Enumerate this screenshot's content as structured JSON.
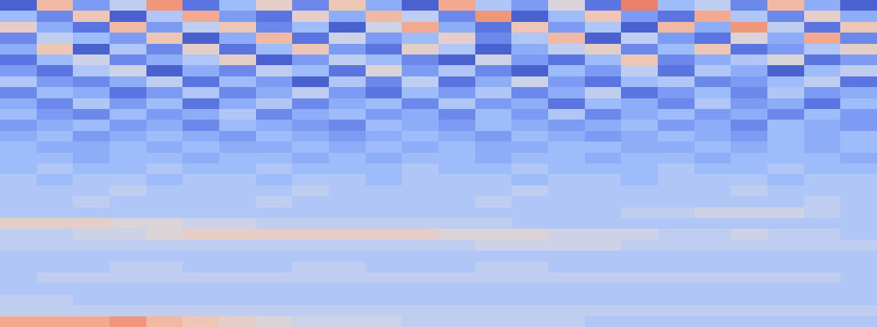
{
  "chart_data": {
    "type": "heatmap",
    "tick_labels": false,
    "zlim": [
      -1,
      1
    ],
    "values": [
      [
        -0.9,
        0.3,
        -0.6,
        -0.2,
        0.5,
        -0.8,
        -0.4,
        0.1,
        -0.7,
        0.2,
        -0.5,
        -0.9,
        0.4,
        -0.3,
        -0.6,
        0.0,
        -0.8,
        0.6,
        -0.4,
        -0.2,
        -0.7,
        0.3,
        -0.5,
        -0.9
      ],
      [
        -0.4,
        -0.7,
        0.2,
        -0.9,
        -0.3,
        0.4,
        -0.6,
        -0.8,
        0.1,
        -0.5,
        0.3,
        -0.2,
        -0.7,
        0.5,
        -0.9,
        -0.4,
        0.2,
        -0.6,
        -0.8,
        0.4,
        -0.3,
        -0.7,
        0.1,
        -0.5
      ],
      [
        0.1,
        -0.5,
        -0.8,
        0.3,
        -0.6,
        -0.2,
        0.2,
        -0.7,
        -0.4,
        -0.9,
        -0.1,
        0.4,
        -0.5,
        -0.8,
        0.2,
        -0.6,
        -0.3,
        -0.9,
        0.3,
        -0.5,
        0.5,
        -0.2,
        -0.8,
        0.2
      ],
      [
        -0.7,
        -0.2,
        -0.4,
        -0.6,
        0.2,
        -0.9,
        -0.5,
        0.3,
        -0.8,
        -0.1,
        -0.6,
        -0.4,
        0.1,
        -0.7,
        -0.3,
        0.3,
        -0.9,
        -0.2,
        -0.6,
        -0.8,
        0.0,
        -0.5,
        0.4,
        -0.7
      ],
      [
        -0.5,
        0.2,
        -0.9,
        -0.3,
        -0.7,
        0.1,
        -0.8,
        -0.4,
        0.2,
        -0.6,
        -0.8,
        0.1,
        -0.3,
        -0.9,
        -0.5,
        -0.2,
        0.1,
        -0.7,
        -0.4,
        0.2,
        -0.8,
        -0.6,
        -0.3,
        0.1
      ],
      [
        -0.8,
        -0.4,
        -0.1,
        -0.7,
        -0.5,
        -0.3,
        0.1,
        -0.9,
        -0.6,
        -0.2,
        -0.4,
        -0.7,
        -0.9,
        -0.1,
        -0.6,
        -0.8,
        -0.4,
        0.2,
        -0.7,
        -0.5,
        -0.3,
        0.0,
        -0.8,
        -0.6
      ],
      [
        -0.6,
        -0.8,
        -0.3,
        -0.1,
        -0.9,
        -0.5,
        -0.7,
        -0.2,
        -0.4,
        -0.8,
        0.0,
        -0.6,
        -0.3,
        -0.7,
        -0.9,
        -0.4,
        -0.6,
        -0.2,
        -0.8,
        -0.3,
        -0.5,
        -0.9,
        -0.4,
        -0.2
      ],
      [
        -0.3,
        -0.6,
        -0.7,
        -0.5,
        -0.2,
        -0.8,
        -0.4,
        -0.6,
        -0.9,
        -0.3,
        -0.7,
        -0.2,
        -0.8,
        -0.5,
        -0.1,
        -0.6,
        -0.8,
        -0.4,
        -0.3,
        -0.7,
        -0.6,
        -0.4,
        -0.2,
        -0.8
      ],
      [
        -0.7,
        -0.4,
        -0.5,
        -0.8,
        -0.6,
        -0.3,
        -0.7,
        -0.5,
        -0.2,
        -0.6,
        -0.8,
        -0.4,
        -0.6,
        -0.3,
        -0.7,
        -0.5,
        -0.2,
        -0.8,
        -0.6,
        -0.4,
        -0.7,
        -0.3,
        -0.6,
        -0.5
      ],
      [
        -0.5,
        -0.7,
        -0.3,
        -0.6,
        -0.4,
        -0.8,
        -0.5,
        -0.3,
        -0.7,
        -0.5,
        -0.4,
        -0.7,
        -0.3,
        -0.6,
        -0.5,
        -0.8,
        -0.4,
        -0.5,
        -0.7,
        -0.3,
        -0.6,
        -0.5,
        -0.8,
        -0.4
      ],
      [
        -0.4,
        -0.6,
        -0.7,
        -0.4,
        -0.6,
        -0.5,
        -0.3,
        -0.7,
        -0.5,
        -0.4,
        -0.6,
        -0.5,
        -0.7,
        -0.4,
        -0.6,
        -0.3,
        -0.7,
        -0.5,
        -0.4,
        -0.6,
        -0.5,
        -0.7,
        -0.4,
        -0.6
      ],
      [
        -0.6,
        -0.5,
        -0.4,
        -0.6,
        -0.5,
        -0.7,
        -0.4,
        -0.5,
        -0.6,
        -0.7,
        -0.4,
        -0.5,
        -0.6,
        -0.4,
        -0.5,
        -0.6,
        -0.5,
        -0.4,
        -0.6,
        -0.5,
        -0.7,
        -0.4,
        -0.5,
        -0.6
      ],
      [
        -0.5,
        -0.4,
        -0.6,
        -0.5,
        -0.4,
        -0.5,
        -0.6,
        -0.4,
        -0.5,
        -0.6,
        -0.5,
        -0.4,
        -0.5,
        -0.6,
        -0.4,
        -0.5,
        -0.6,
        -0.5,
        -0.4,
        -0.5,
        -0.6,
        -0.4,
        -0.5,
        -0.4
      ],
      [
        -0.4,
        -0.5,
        -0.5,
        -0.4,
        -0.5,
        -0.4,
        -0.5,
        -0.5,
        -0.4,
        -0.5,
        -0.4,
        -0.5,
        -0.4,
        -0.5,
        -0.5,
        -0.4,
        -0.4,
        -0.5,
        -0.5,
        -0.4,
        -0.5,
        -0.4,
        -0.5,
        -0.4
      ],
      [
        -0.4,
        -0.4,
        -0.5,
        -0.4,
        -0.4,
        -0.5,
        -0.4,
        -0.4,
        -0.5,
        -0.4,
        -0.5,
        -0.4,
        -0.4,
        -0.5,
        -0.4,
        -0.4,
        -0.5,
        -0.4,
        -0.4,
        -0.5,
        -0.4,
        -0.4,
        -0.4,
        -0.5
      ],
      [
        -0.4,
        -0.3,
        -0.4,
        -0.4,
        -0.3,
        -0.4,
        -0.4,
        -0.3,
        -0.4,
        -0.4,
        -0.4,
        -0.3,
        -0.4,
        -0.4,
        -0.3,
        -0.4,
        -0.4,
        -0.4,
        -0.3,
        -0.4,
        -0.4,
        -0.3,
        -0.4,
        -0.4
      ],
      [
        -0.3,
        -0.4,
        -0.3,
        -0.3,
        -0.4,
        -0.3,
        -0.3,
        -0.4,
        -0.3,
        -0.3,
        -0.4,
        -0.3,
        -0.3,
        -0.3,
        -0.4,
        -0.3,
        -0.3,
        -0.4,
        -0.3,
        -0.3,
        -0.3,
        -0.4,
        -0.3,
        -0.3
      ],
      [
        -0.3,
        -0.3,
        -0.3,
        -0.2,
        -0.3,
        -0.3,
        -0.3,
        -0.3,
        -0.2,
        -0.3,
        -0.3,
        -0.3,
        -0.3,
        -0.3,
        -0.2,
        -0.3,
        -0.3,
        -0.3,
        -0.3,
        -0.3,
        -0.2,
        -0.3,
        -0.3,
        -0.3
      ],
      [
        -0.3,
        -0.3,
        -0.2,
        -0.3,
        -0.3,
        -0.3,
        -0.3,
        -0.2,
        -0.3,
        -0.3,
        -0.3,
        -0.3,
        -0.3,
        -0.2,
        -0.3,
        -0.3,
        -0.3,
        -0.3,
        -0.3,
        -0.3,
        -0.3,
        -0.3,
        -0.2,
        -0.3
      ],
      [
        -0.3,
        -0.3,
        -0.3,
        -0.3,
        -0.3,
        -0.3,
        -0.3,
        -0.3,
        -0.3,
        -0.3,
        -0.3,
        -0.3,
        -0.3,
        -0.3,
        -0.3,
        -0.3,
        -0.3,
        -0.2,
        -0.2,
        -0.1,
        -0.1,
        -0.1,
        -0.2,
        -0.3
      ],
      [
        0.1,
        0.1,
        0.1,
        0.0,
        0.0,
        -0.1,
        -0.1,
        -0.2,
        -0.2,
        -0.2,
        -0.2,
        -0.2,
        -0.2,
        -0.2,
        -0.3,
        -0.3,
        -0.3,
        -0.3,
        -0.3,
        -0.3,
        -0.3,
        -0.3,
        -0.3,
        -0.3
      ],
      [
        -0.2,
        -0.2,
        -0.1,
        -0.1,
        0.0,
        0.1,
        0.1,
        0.1,
        0.1,
        0.1,
        0.1,
        0.1,
        0.0,
        0.0,
        0.0,
        -0.1,
        -0.1,
        -0.1,
        -0.2,
        -0.2,
        -0.1,
        -0.2,
        -0.2,
        -0.3
      ],
      [
        -0.2,
        -0.2,
        -0.2,
        -0.2,
        -0.2,
        -0.2,
        -0.2,
        -0.2,
        -0.2,
        -0.2,
        -0.2,
        -0.2,
        -0.2,
        -0.1,
        -0.1,
        -0.1,
        -0.1,
        -0.2,
        -0.2,
        -0.2,
        -0.2,
        -0.2,
        -0.2,
        -0.2
      ],
      [
        -0.3,
        -0.3,
        -0.3,
        -0.3,
        -0.3,
        -0.3,
        -0.3,
        -0.3,
        -0.3,
        -0.3,
        -0.3,
        -0.3,
        -0.3,
        -0.3,
        -0.3,
        -0.3,
        -0.3,
        -0.3,
        -0.3,
        -0.3,
        -0.3,
        -0.3,
        -0.3,
        -0.3
      ],
      [
        -0.3,
        -0.3,
        -0.3,
        -0.2,
        -0.2,
        -0.3,
        -0.3,
        -0.3,
        -0.2,
        -0.2,
        -0.3,
        -0.3,
        -0.3,
        -0.2,
        -0.2,
        -0.3,
        -0.3,
        -0.3,
        -0.3,
        -0.3,
        -0.3,
        -0.3,
        -0.3,
        -0.3
      ],
      [
        -0.3,
        -0.2,
        -0.2,
        -0.2,
        -0.2,
        -0.2,
        -0.2,
        -0.2,
        -0.2,
        -0.2,
        -0.2,
        -0.2,
        -0.2,
        -0.2,
        -0.2,
        -0.2,
        -0.2,
        -0.2,
        -0.2,
        -0.2,
        -0.2,
        -0.2,
        -0.2,
        -0.3
      ],
      [
        -0.3,
        -0.3,
        -0.3,
        -0.3,
        -0.3,
        -0.3,
        -0.3,
        -0.3,
        -0.3,
        -0.3,
        -0.3,
        -0.3,
        -0.3,
        -0.3,
        -0.3,
        -0.3,
        -0.3,
        -0.3,
        -0.3,
        -0.3,
        -0.3,
        -0.3,
        -0.3,
        -0.3
      ],
      [
        -0.2,
        -0.2,
        -0.3,
        -0.3,
        -0.3,
        -0.3,
        -0.3,
        -0.3,
        -0.3,
        -0.3,
        -0.3,
        -0.3,
        -0.3,
        -0.3,
        -0.3,
        -0.3,
        -0.3,
        -0.3,
        -0.3,
        -0.3,
        -0.3,
        -0.3,
        -0.3,
        -0.3
      ],
      [
        -0.2,
        -0.2,
        -0.2,
        -0.2,
        -0.2,
        -0.2,
        -0.2,
        -0.2,
        -0.2,
        -0.2,
        -0.2,
        -0.2,
        -0.2,
        -0.2,
        -0.2,
        -0.2,
        -0.2,
        -0.2,
        -0.2,
        -0.2,
        -0.2,
        -0.2,
        -0.2,
        -0.2
      ],
      [
        0.4,
        0.4,
        0.4,
        0.5,
        0.3,
        0.2,
        0.1,
        0.0,
        -0.1,
        -0.1,
        -0.1,
        -0.2,
        -0.2,
        -0.2,
        -0.2,
        -0.2,
        -0.3,
        -0.3,
        -0.3,
        -0.3,
        -0.3,
        -0.3,
        -0.3,
        -0.3
      ]
    ]
  }
}
